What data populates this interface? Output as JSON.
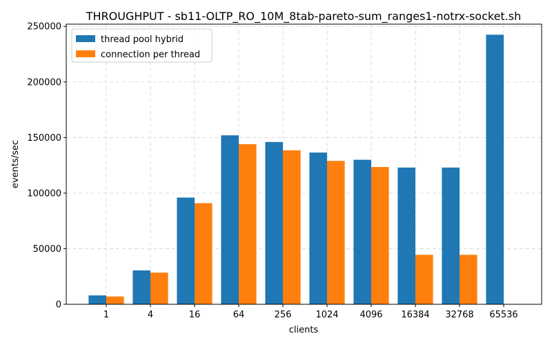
{
  "chart_data": {
    "type": "bar",
    "title": "THROUGHPUT - sb11-OLTP_RO_10M_8tab-pareto-sum_ranges1-notrx-socket.sh",
    "xlabel": "clients",
    "ylabel": "events/sec",
    "categories": [
      "1",
      "4",
      "16",
      "64",
      "256",
      "1024",
      "4096",
      "16384",
      "32768",
      "65536"
    ],
    "ylim": [
      0,
      252000
    ],
    "yticks": [
      0,
      50000,
      100000,
      150000,
      200000,
      250000
    ],
    "grid": true,
    "legend_position": "top-left",
    "series": [
      {
        "name": "thread pool hybrid",
        "color": "#1f77b4",
        "values": [
          8000,
          30500,
          96000,
          152000,
          146000,
          136500,
          130000,
          123000,
          123000,
          242500
        ]
      },
      {
        "name": "connection per thread",
        "color": "#ff7f0e",
        "values": [
          7000,
          28500,
          91000,
          144000,
          138500,
          129000,
          123500,
          44500,
          44500,
          0
        ]
      }
    ]
  }
}
